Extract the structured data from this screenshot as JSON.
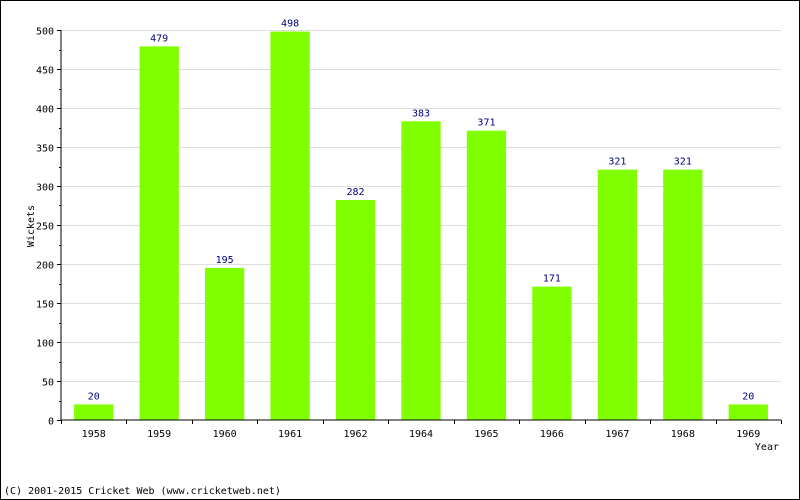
{
  "chart_data": {
    "type": "bar",
    "categories": [
      "1958",
      "1959",
      "1960",
      "1961",
      "1962",
      "1964",
      "1965",
      "1966",
      "1967",
      "1968",
      "1969"
    ],
    "series": [
      {
        "values": [
          20,
          479,
          195,
          498,
          282,
          383,
          371,
          171,
          321,
          321,
          20
        ]
      }
    ],
    "xlabel": "Year",
    "ylabel": "Wickets",
    "ylim": [
      0,
      500
    ],
    "yticks": [
      0,
      50,
      100,
      150,
      200,
      250,
      300,
      350,
      400,
      450,
      500
    ],
    "grid": true,
    "show_data_labels": true,
    "bar_color": "#7fff00",
    "label_color": "#000080",
    "grid_color": "#dddddd"
  },
  "footer": {
    "copyright": "(C) 2001-2015 Cricket Web (www.cricketweb.net)"
  }
}
